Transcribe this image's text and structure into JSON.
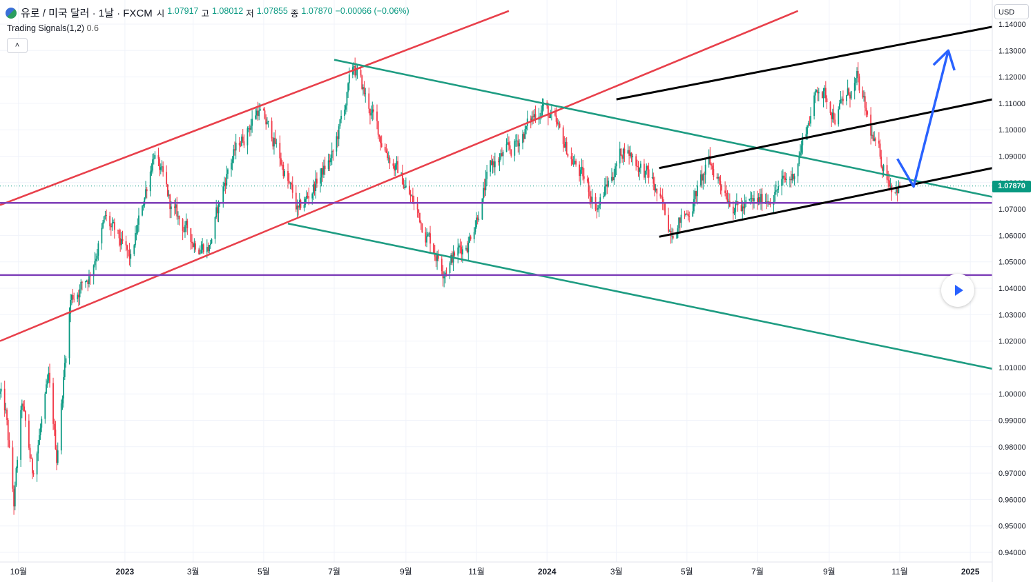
{
  "header": {
    "symbol_title": "유로 / 미국 달러 · 1날 · FXCM",
    "open_label": "시",
    "open": "1.07917",
    "high_label": "고",
    "high": "1.08012",
    "low_label": "저",
    "low": "1.07855",
    "close_label": "종",
    "close": "1.07870",
    "change": "−0.00066 (−0.06%)"
  },
  "indicator": {
    "name": "Trading Signals(1,2)",
    "value": "0.6"
  },
  "currency": "USD",
  "last_price_label": "1.07870",
  "colors": {
    "up": "#089981",
    "down": "#f23645",
    "red_channel": "#e8404b",
    "green_channel": "#1e9c82",
    "purple_level": "#7e3fb8",
    "black_channel": "#000000",
    "projection": "#2962ff"
  },
  "chart_data": {
    "type": "candlestick",
    "symbol": "EUR/USD",
    "timeframe": "1D",
    "ylim": [
      0.935,
      1.142
    ],
    "y_ticks": [
      "1.14000",
      "1.13000",
      "1.12000",
      "1.11000",
      "1.10000",
      "1.09000",
      "1.08000",
      "1.07000",
      "1.06000",
      "1.05000",
      "1.04000",
      "1.03000",
      "1.02000",
      "1.01000",
      "1.00000",
      "0.99000",
      "0.98000",
      "0.97000",
      "0.96000",
      "0.95000",
      "0.94000"
    ],
    "x_ticks": [
      {
        "label": "10월",
        "date": "2022-10-01"
      },
      {
        "label": "2023",
        "date": "2023-01-01",
        "bold": true
      },
      {
        "label": "3월",
        "date": "2023-03-01"
      },
      {
        "label": "5월",
        "date": "2023-05-01"
      },
      {
        "label": "7월",
        "date": "2023-07-01"
      },
      {
        "label": "9월",
        "date": "2023-09-01"
      },
      {
        "label": "11월",
        "date": "2023-11-01"
      },
      {
        "label": "2024",
        "date": "2024-01-01",
        "bold": true
      },
      {
        "label": "3월",
        "date": "2024-03-01"
      },
      {
        "label": "5월",
        "date": "2024-05-01"
      },
      {
        "label": "7월",
        "date": "2024-07-01"
      },
      {
        "label": "9월",
        "date": "2024-09-01"
      },
      {
        "label": "11월",
        "date": "2024-11-01"
      },
      {
        "label": "2025",
        "date": "2025-01-01",
        "bold": true
      }
    ],
    "x_range": [
      "2022-09-15",
      "2025-01-20"
    ],
    "price_path": [
      [
        "2022-09-15",
        1.0
      ],
      [
        "2022-09-20",
        0.992
      ],
      [
        "2022-09-27",
        0.958
      ],
      [
        "2022-10-04",
        0.996
      ],
      [
        "2022-10-13",
        0.97
      ],
      [
        "2022-10-27",
        1.004
      ],
      [
        "2022-11-03",
        0.976
      ],
      [
        "2022-11-15",
        1.036
      ],
      [
        "2022-12-01",
        1.045
      ],
      [
        "2022-12-15",
        1.066
      ],
      [
        "2023-01-06",
        1.05
      ],
      [
        "2023-01-26",
        1.092
      ],
      [
        "2023-02-10",
        1.07
      ],
      [
        "2023-03-01",
        1.058
      ],
      [
        "2023-03-15",
        1.056
      ],
      [
        "2023-04-01",
        1.087
      ],
      [
        "2023-04-26",
        1.108
      ],
      [
        "2023-05-10",
        1.096
      ],
      [
        "2023-05-31",
        1.068
      ],
      [
        "2023-06-15",
        1.08
      ],
      [
        "2023-06-30",
        1.09
      ],
      [
        "2023-07-18",
        1.124
      ],
      [
        "2023-08-10",
        1.097
      ],
      [
        "2023-09-01",
        1.078
      ],
      [
        "2023-10-03",
        1.048
      ],
      [
        "2023-10-25",
        1.058
      ],
      [
        "2023-11-15",
        1.087
      ],
      [
        "2023-12-01",
        1.092
      ],
      [
        "2023-12-28",
        1.11
      ],
      [
        "2024-01-15",
        1.095
      ],
      [
        "2024-02-14",
        1.071
      ],
      [
        "2024-03-08",
        1.094
      ],
      [
        "2024-04-01",
        1.08
      ],
      [
        "2024-04-16",
        1.063
      ],
      [
        "2024-05-01",
        1.068
      ],
      [
        "2024-05-20",
        1.087
      ],
      [
        "2024-06-15",
        1.07
      ],
      [
        "2024-07-01",
        1.072
      ],
      [
        "2024-07-31",
        1.082
      ],
      [
        "2024-08-23",
        1.117
      ],
      [
        "2024-09-06",
        1.106
      ],
      [
        "2024-09-25",
        1.118
      ],
      [
        "2024-10-10",
        1.094
      ],
      [
        "2024-10-25",
        1.08
      ],
      [
        "2024-11-01",
        1.0787
      ]
    ],
    "trendlines": [
      {
        "color": "red_channel",
        "p1": [
          "2022-09-15",
          1.0715
        ],
        "p2": [
          "2023-11-29",
          1.145
        ]
      },
      {
        "color": "red_channel",
        "p1": [
          "2022-09-15",
          1.02
        ],
        "p2": [
          "2024-08-05",
          1.145
        ]
      },
      {
        "color": "green_channel",
        "p1": [
          "2023-07-01",
          1.1265
        ],
        "p2": [
          "2025-01-20",
          1.0746
        ]
      },
      {
        "color": "green_channel",
        "p1": [
          "2023-05-22",
          1.0645
        ],
        "p2": [
          "2025-01-20",
          1.0095
        ]
      },
      {
        "color": "purple_level",
        "p1": [
          "2022-09-15",
          1.0723
        ],
        "p2": [
          "2025-01-20",
          1.0723
        ]
      },
      {
        "color": "purple_level",
        "p1": [
          "2022-09-15",
          1.045
        ],
        "p2": [
          "2025-01-20",
          1.045
        ]
      },
      {
        "color": "black_channel",
        "p1": [
          "2024-03-01",
          1.1115
        ],
        "p2": [
          "2025-01-20",
          1.139
        ]
      },
      {
        "color": "black_channel",
        "p1": [
          "2024-04-07",
          1.0855
        ],
        "p2": [
          "2025-01-20",
          1.1115
        ]
      },
      {
        "color": "black_channel",
        "p1": [
          "2024-04-07",
          1.0595
        ],
        "p2": [
          "2025-01-20",
          1.0855
        ]
      }
    ],
    "projection": [
      [
        "2024-10-30",
        1.089
      ],
      [
        "2024-11-13",
        1.0785
      ],
      [
        "2024-12-13",
        1.13
      ]
    ],
    "last_price": 1.0787
  }
}
